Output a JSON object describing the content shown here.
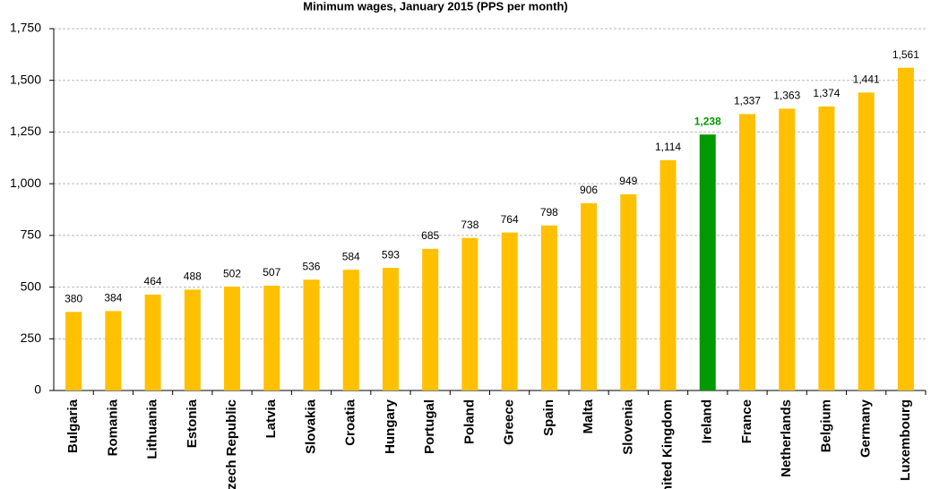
{
  "chart_data": {
    "type": "bar",
    "title": "Minimum wages, January 2015 (PPS per month)",
    "categories": [
      "Bulgaria",
      "Romania",
      "Lithuania",
      "Estonia",
      "Czech Republic",
      "Latvia",
      "Slovakia",
      "Croatia",
      "Hungary",
      "Portugal",
      "Poland",
      "Greece",
      "Spain",
      "Malta",
      "Slovenia",
      "United Kingdom",
      "Ireland",
      "France",
      "Netherlands",
      "Belgium",
      "Germany",
      "Luxembourg"
    ],
    "values": [
      380,
      384,
      464,
      488,
      502,
      507,
      536,
      584,
      593,
      685,
      738,
      764,
      798,
      906,
      949,
      1114,
      1238,
      1337,
      1363,
      1374,
      1441,
      1561
    ],
    "value_labels": [
      "380",
      "384",
      "464",
      "488",
      "502",
      "507",
      "536",
      "584",
      "593",
      "685",
      "738",
      "764",
      "798",
      "906",
      "949",
      "1,114",
      "1,238",
      "1,337",
      "1,363",
      "1,374",
      "1,441",
      "1,561"
    ],
    "colors": [
      "#ffc000",
      "#ffc000",
      "#ffc000",
      "#ffc000",
      "#ffc000",
      "#ffc000",
      "#ffc000",
      "#ffc000",
      "#ffc000",
      "#ffc000",
      "#ffc000",
      "#ffc000",
      "#ffc000",
      "#ffc000",
      "#ffc000",
      "#ffc000",
      "#009900",
      "#ffc000",
      "#ffc000",
      "#ffc000",
      "#ffc000",
      "#ffc000"
    ],
    "ylim": [
      0,
      1750
    ],
    "yticks": [
      0,
      250,
      500,
      750,
      {
        "value": 1000,
        "label": "1,000"
      },
      {
        "value": 1250,
        "label": "1,250"
      },
      {
        "value": 1500,
        "label": "1,500"
      },
      {
        "value": 1750,
        "label": "1,750"
      }
    ],
    "grid": true
  }
}
